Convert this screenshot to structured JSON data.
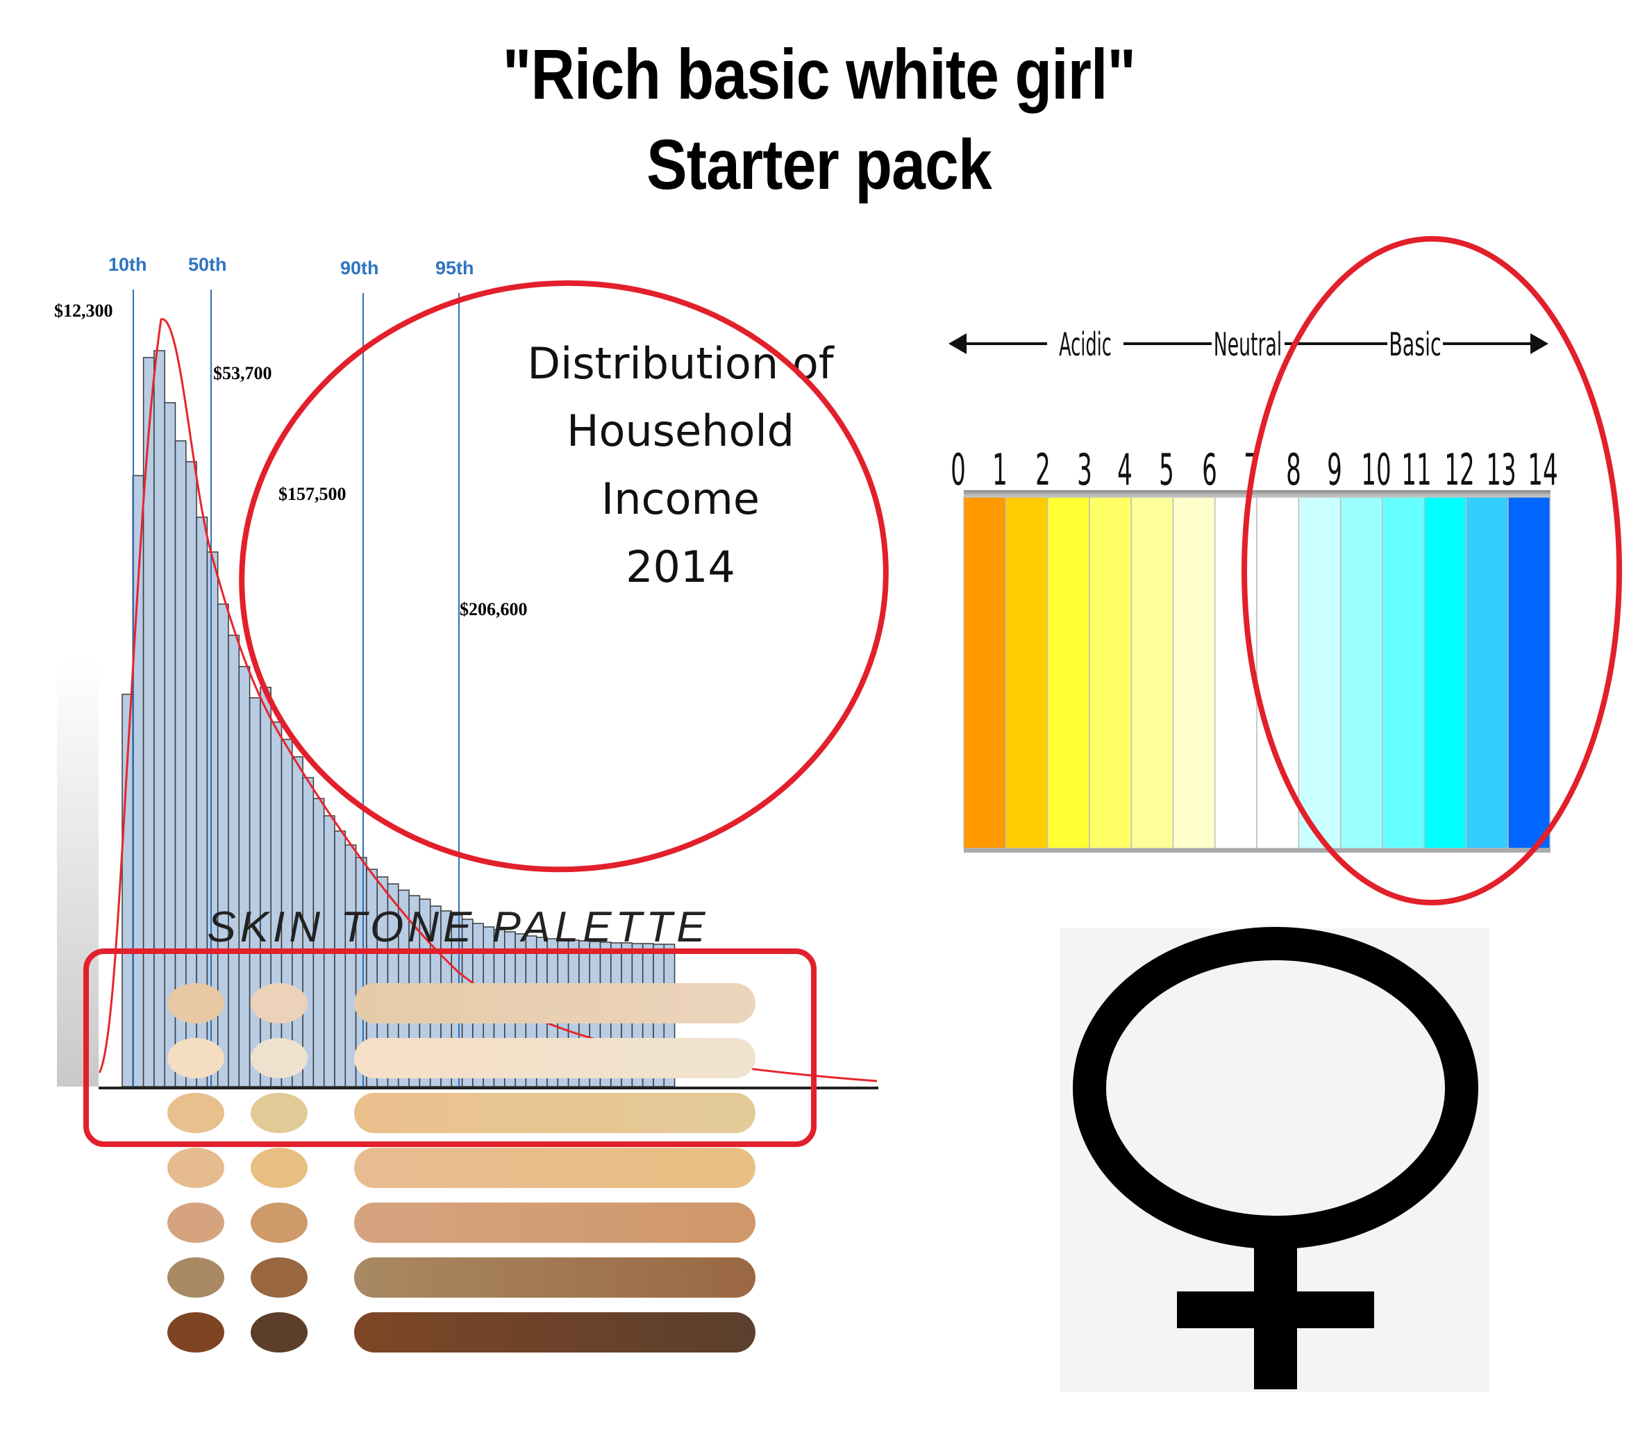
{
  "title": {
    "line1": "\"Rich basic white girl\"",
    "line2": "Starter pack"
  },
  "income_chart": {
    "percentile_labels": [
      "10th",
      "50th",
      "90th",
      "95th"
    ],
    "value_labels": [
      "$12,300",
      "$53,700",
      "$157,500",
      "$206,600"
    ],
    "title_lines": [
      "Distribution of",
      "Household",
      "Income",
      "2014"
    ],
    "colors": {
      "bar_fill": "#b8cce4",
      "bar_stroke": "#3a3a3a",
      "curve": "#e8242b",
      "percentile_line": "#2e6fb5",
      "label_blue": "#2e75c0"
    }
  },
  "ph_scale": {
    "direction_labels": [
      "Acidic",
      "Neutral",
      "Basic"
    ],
    "numbers": [
      "0",
      "1",
      "2",
      "3",
      "4",
      "5",
      "6",
      "7",
      "8",
      "9",
      "10",
      "11",
      "12",
      "13",
      "14"
    ],
    "colors": [
      "#ff9900",
      "#ffcc00",
      "#ffff33",
      "#ffff66",
      "#ffff99",
      "#ffffcc",
      "#ffffff",
      "#ffffff",
      "#ccffff",
      "#99ffff",
      "#66ffff",
      "#00ffff",
      "#33ccff",
      "#0066ff"
    ]
  },
  "skin_palette": {
    "title": "SKIN TONE PALETTE",
    "rows": [
      {
        "dot1": "#e8c9a4",
        "dot2": "#ebd2b8",
        "bar_from": "#e5cba8",
        "bar_to": "#ecd4bd"
      },
      {
        "dot1": "#f5ddc2",
        "dot2": "#eee2cf",
        "bar_from": "#f6dfc6",
        "bar_to": "#efe3cf"
      },
      {
        "dot1": "#e8c08e",
        "dot2": "#e2ca96",
        "bar_from": "#ebc08d",
        "bar_to": "#e3cb98"
      },
      {
        "dot1": "#e6bb8f",
        "dot2": "#e9be81",
        "bar_from": "#e7bc90",
        "bar_to": "#eabf82"
      },
      {
        "dot1": "#d5a47f",
        "dot2": "#cf9a6a",
        "bar_from": "#d5a47f",
        "bar_to": "#cf976a"
      },
      {
        "dot1": "#a98963",
        "dot2": "#98663f",
        "bar_from": "#a98963",
        "bar_to": "#9a6842"
      },
      {
        "dot1": "#7e4422",
        "dot2": "#5c3f2a",
        "bar_from": "#7e4626",
        "bar_to": "#5b3f2d"
      }
    ]
  },
  "female_symbol": {
    "name": "venus",
    "background": "#f4f4f4",
    "color": "#000000"
  }
}
